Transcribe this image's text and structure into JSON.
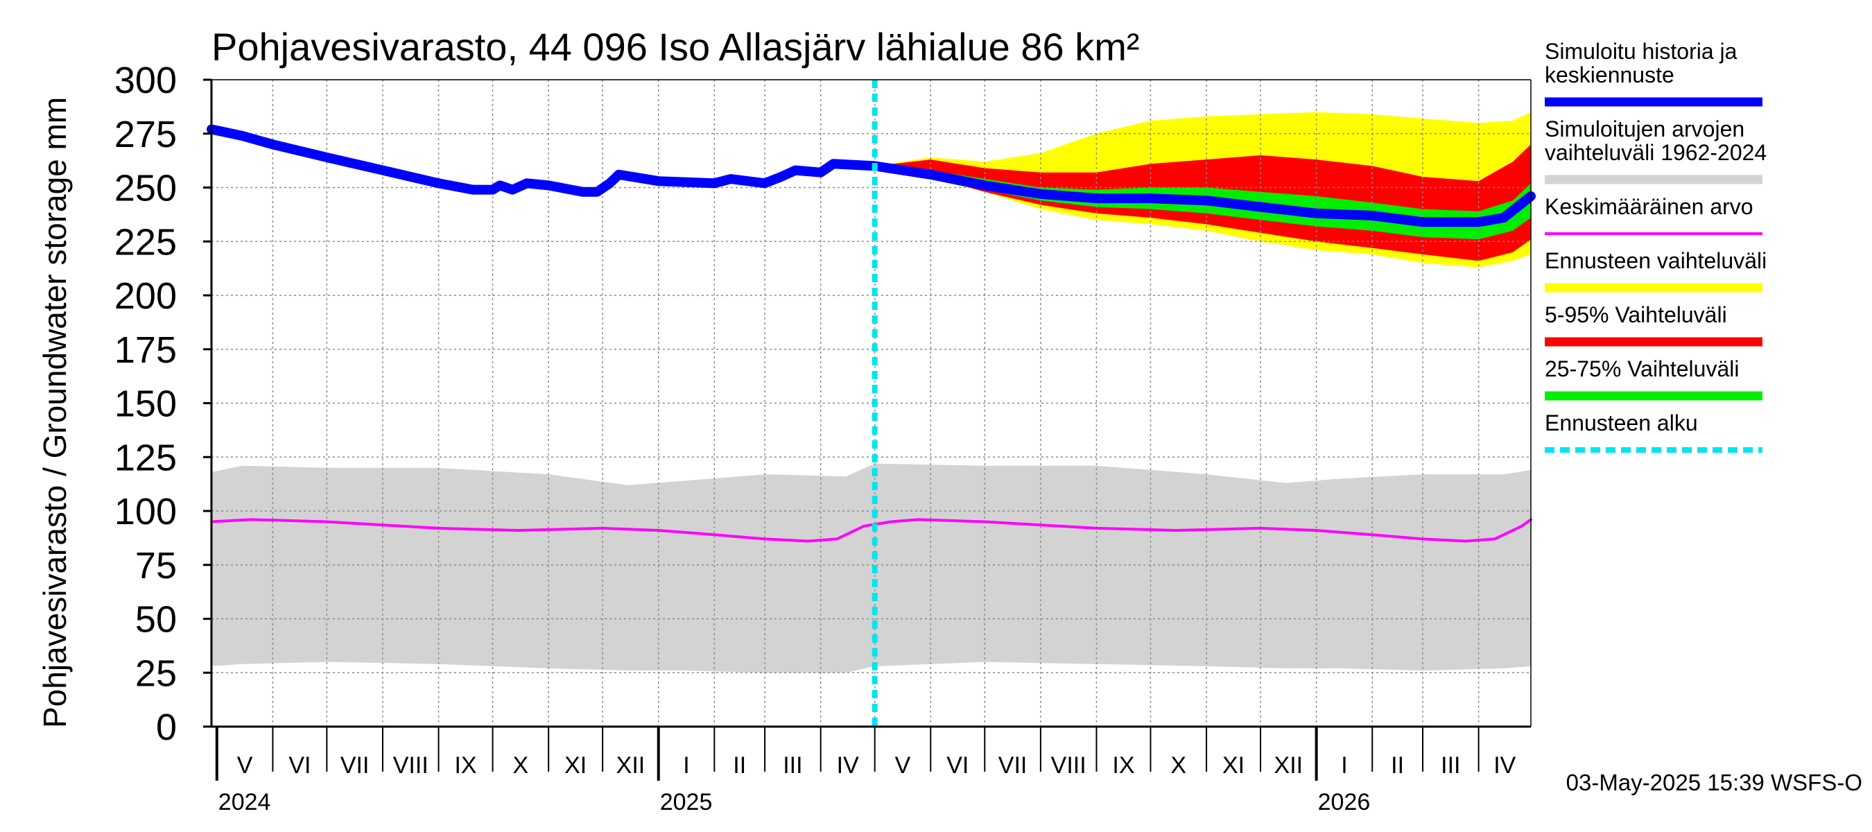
{
  "chart_data": {
    "type": "area",
    "title": "Pohjavesivarasto, 44 096 Iso Allasjärv lähialue 86 km²",
    "ylabel": "Pohjavesivarasto / Groundwater storage   mm",
    "ylim": [
      0,
      300
    ],
    "yticks": [
      "0",
      "25",
      "50",
      "75",
      "100",
      "125",
      "150",
      "175",
      "200",
      "225",
      "250",
      "275",
      "300"
    ],
    "xlim": [
      "2024-04-28",
      "2026-04-30"
    ],
    "months": [
      {
        "label": "V",
        "start": "2024-05-01",
        "end": "2024-06-01"
      },
      {
        "label": "VI",
        "start": "2024-06-01",
        "end": "2024-07-01"
      },
      {
        "label": "VII",
        "start": "2024-07-01",
        "end": "2024-08-01"
      },
      {
        "label": "VIII",
        "start": "2024-08-01",
        "end": "2024-09-01"
      },
      {
        "label": "IX",
        "start": "2024-09-01",
        "end": "2024-10-01"
      },
      {
        "label": "X",
        "start": "2024-10-01",
        "end": "2024-11-01"
      },
      {
        "label": "XI",
        "start": "2024-11-01",
        "end": "2024-12-01"
      },
      {
        "label": "XII",
        "start": "2024-12-01",
        "end": "2025-01-01"
      },
      {
        "label": "I",
        "start": "2025-01-01",
        "end": "2025-02-01"
      },
      {
        "label": "II",
        "start": "2025-02-01",
        "end": "2025-03-01"
      },
      {
        "label": "III",
        "start": "2025-03-01",
        "end": "2025-04-01"
      },
      {
        "label": "IV",
        "start": "2025-04-01",
        "end": "2025-05-01"
      },
      {
        "label": "V",
        "start": "2025-05-01",
        "end": "2025-06-01"
      },
      {
        "label": "VI",
        "start": "2025-06-01",
        "end": "2025-07-01"
      },
      {
        "label": "VII",
        "start": "2025-07-01",
        "end": "2025-08-01"
      },
      {
        "label": "VIII",
        "start": "2025-08-01",
        "end": "2025-09-01"
      },
      {
        "label": "IX",
        "start": "2025-09-01",
        "end": "2025-10-01"
      },
      {
        "label": "X",
        "start": "2025-10-01",
        "end": "2025-11-01"
      },
      {
        "label": "XI",
        "start": "2025-11-01",
        "end": "2025-12-01"
      },
      {
        "label": "XII",
        "start": "2025-12-01",
        "end": "2026-01-01"
      },
      {
        "label": "I",
        "start": "2026-01-01",
        "end": "2026-02-01"
      },
      {
        "label": "II",
        "start": "2026-02-01",
        "end": "2026-03-01"
      },
      {
        "label": "III",
        "start": "2026-03-01",
        "end": "2026-04-01"
      },
      {
        "label": "IV",
        "start": "2026-04-01",
        "end": "2026-04-30"
      }
    ],
    "years": [
      {
        "label": "2024",
        "date": "2024-05-01"
      },
      {
        "label": "2025",
        "date": "2025-01-01"
      },
      {
        "label": "2026",
        "date": "2026-01-01"
      }
    ],
    "forecast_start": "2025-05-01",
    "series": [
      {
        "name": "Simuloitujen arvojen vaihteluväli 1962-2024",
        "kind": "band",
        "color": "#d3d3d3",
        "points": [
          {
            "date": "2024-04-28",
            "low": 28,
            "high": 118
          },
          {
            "date": "2024-05-15",
            "low": 29,
            "high": 121
          },
          {
            "date": "2024-07-01",
            "low": 30,
            "high": 120
          },
          {
            "date": "2024-09-01",
            "low": 29,
            "high": 120
          },
          {
            "date": "2024-11-01",
            "low": 27,
            "high": 117
          },
          {
            "date": "2024-12-15",
            "low": 26,
            "high": 112
          },
          {
            "date": "2025-01-15",
            "low": 26,
            "high": 114
          },
          {
            "date": "2025-03-01",
            "low": 25,
            "high": 117
          },
          {
            "date": "2025-04-15",
            "low": 25,
            "high": 116
          },
          {
            "date": "2025-05-01",
            "low": 28,
            "high": 122
          },
          {
            "date": "2025-07-01",
            "low": 30,
            "high": 121
          },
          {
            "date": "2025-09-01",
            "low": 29,
            "high": 121
          },
          {
            "date": "2025-11-01",
            "low": 28,
            "high": 117
          },
          {
            "date": "2025-12-15",
            "low": 27,
            "high": 113
          },
          {
            "date": "2026-01-15",
            "low": 27,
            "high": 115
          },
          {
            "date": "2026-03-01",
            "low": 26,
            "high": 117
          },
          {
            "date": "2026-04-15",
            "low": 27,
            "high": 117
          },
          {
            "date": "2026-04-30",
            "low": 28,
            "high": 119
          }
        ]
      },
      {
        "name": "Ennusteen vaihteluväli",
        "kind": "band",
        "color": "#ffff00",
        "points": [
          {
            "date": "2025-05-01",
            "low": 259,
            "high": 260
          },
          {
            "date": "2025-06-01",
            "low": 254,
            "high": 264
          },
          {
            "date": "2025-07-01",
            "low": 248,
            "high": 262
          },
          {
            "date": "2025-08-01",
            "low": 240,
            "high": 266
          },
          {
            "date": "2025-09-01",
            "low": 235,
            "high": 275
          },
          {
            "date": "2025-10-01",
            "low": 233,
            "high": 281
          },
          {
            "date": "2025-11-01",
            "low": 230,
            "high": 283
          },
          {
            "date": "2025-12-01",
            "low": 225,
            "high": 284
          },
          {
            "date": "2026-01-01",
            "low": 221,
            "high": 285
          },
          {
            "date": "2026-02-01",
            "low": 219,
            "high": 284
          },
          {
            "date": "2026-03-01",
            "low": 215,
            "high": 282
          },
          {
            "date": "2026-04-01",
            "low": 213,
            "high": 280
          },
          {
            "date": "2026-04-20",
            "low": 216,
            "high": 281
          },
          {
            "date": "2026-04-30",
            "low": 219,
            "high": 285
          }
        ]
      },
      {
        "name": "5-95% Vaihteluväli",
        "kind": "band",
        "color": "#ff0000",
        "points": [
          {
            "date": "2025-05-01",
            "low": 259,
            "high": 260
          },
          {
            "date": "2025-06-01",
            "low": 255,
            "high": 263
          },
          {
            "date": "2025-07-01",
            "low": 248,
            "high": 259
          },
          {
            "date": "2025-08-01",
            "low": 242,
            "high": 257
          },
          {
            "date": "2025-09-01",
            "low": 238,
            "high": 257
          },
          {
            "date": "2025-10-01",
            "low": 236,
            "high": 261
          },
          {
            "date": "2025-11-01",
            "low": 233,
            "high": 263
          },
          {
            "date": "2025-12-01",
            "low": 229,
            "high": 265
          },
          {
            "date": "2026-01-01",
            "low": 225,
            "high": 263
          },
          {
            "date": "2026-02-01",
            "low": 222,
            "high": 260
          },
          {
            "date": "2026-03-01",
            "low": 219,
            "high": 255
          },
          {
            "date": "2026-04-01",
            "low": 216,
            "high": 253
          },
          {
            "date": "2026-04-20",
            "low": 220,
            "high": 262
          },
          {
            "date": "2026-04-30",
            "low": 226,
            "high": 270
          }
        ]
      },
      {
        "name": "25-75% Vaihteluväli",
        "kind": "band",
        "color": "#00ee00",
        "points": [
          {
            "date": "2025-05-01",
            "low": 259,
            "high": 260
          },
          {
            "date": "2025-06-01",
            "low": 255,
            "high": 258
          },
          {
            "date": "2025-07-01",
            "low": 249,
            "high": 254
          },
          {
            "date": "2025-08-01",
            "low": 244,
            "high": 250
          },
          {
            "date": "2025-09-01",
            "low": 241,
            "high": 249
          },
          {
            "date": "2025-10-01",
            "low": 240,
            "high": 250
          },
          {
            "date": "2025-11-01",
            "low": 238,
            "high": 250
          },
          {
            "date": "2025-12-01",
            "low": 235,
            "high": 248
          },
          {
            "date": "2026-01-01",
            "low": 232,
            "high": 246
          },
          {
            "date": "2026-02-01",
            "low": 230,
            "high": 243
          },
          {
            "date": "2026-03-01",
            "low": 227,
            "high": 240
          },
          {
            "date": "2026-04-01",
            "low": 226,
            "high": 239
          },
          {
            "date": "2026-04-20",
            "low": 230,
            "high": 244
          },
          {
            "date": "2026-04-30",
            "low": 236,
            "high": 252
          }
        ]
      },
      {
        "name": "Keskimääräinen arvo",
        "kind": "line",
        "color": "#ff00ff",
        "points": [
          {
            "date": "2024-04-28",
            "value": 95
          },
          {
            "date": "2024-05-20",
            "value": 96
          },
          {
            "date": "2024-07-01",
            "value": 95
          },
          {
            "date": "2024-09-01",
            "value": 92
          },
          {
            "date": "2024-10-15",
            "value": 91
          },
          {
            "date": "2024-12-01",
            "value": 92
          },
          {
            "date": "2025-01-01",
            "value": 91
          },
          {
            "date": "2025-02-01",
            "value": 89
          },
          {
            "date": "2025-03-01",
            "value": 87
          },
          {
            "date": "2025-03-25",
            "value": 86
          },
          {
            "date": "2025-04-10",
            "value": 87
          },
          {
            "date": "2025-04-25",
            "value": 93
          },
          {
            "date": "2025-05-10",
            "value": 95
          },
          {
            "date": "2025-05-25",
            "value": 96
          },
          {
            "date": "2025-07-01",
            "value": 95
          },
          {
            "date": "2025-09-01",
            "value": 92
          },
          {
            "date": "2025-10-15",
            "value": 91
          },
          {
            "date": "2025-12-01",
            "value": 92
          },
          {
            "date": "2026-01-01",
            "value": 91
          },
          {
            "date": "2026-02-01",
            "value": 89
          },
          {
            "date": "2026-03-01",
            "value": 87
          },
          {
            "date": "2026-03-25",
            "value": 86
          },
          {
            "date": "2026-04-10",
            "value": 87
          },
          {
            "date": "2026-04-25",
            "value": 93
          },
          {
            "date": "2026-04-30",
            "value": 96
          }
        ]
      },
      {
        "name": "Simuloitu historia ja keskiennuste",
        "kind": "line",
        "color": "#0000ff",
        "points": [
          {
            "date": "2024-04-28",
            "value": 277
          },
          {
            "date": "2024-05-15",
            "value": 274
          },
          {
            "date": "2024-06-01",
            "value": 270
          },
          {
            "date": "2024-07-01",
            "value": 264
          },
          {
            "date": "2024-08-01",
            "value": 258
          },
          {
            "date": "2024-09-01",
            "value": 252
          },
          {
            "date": "2024-09-20",
            "value": 249
          },
          {
            "date": "2024-10-01",
            "value": 249
          },
          {
            "date": "2024-10-05",
            "value": 251
          },
          {
            "date": "2024-10-12",
            "value": 249
          },
          {
            "date": "2024-10-20",
            "value": 252
          },
          {
            "date": "2024-11-01",
            "value": 251
          },
          {
            "date": "2024-11-20",
            "value": 248
          },
          {
            "date": "2024-11-28",
            "value": 248
          },
          {
            "date": "2024-12-05",
            "value": 252
          },
          {
            "date": "2024-12-10",
            "value": 256
          },
          {
            "date": "2025-01-01",
            "value": 253
          },
          {
            "date": "2025-02-01",
            "value": 252
          },
          {
            "date": "2025-02-10",
            "value": 254
          },
          {
            "date": "2025-03-01",
            "value": 252
          },
          {
            "date": "2025-03-10",
            "value": 255
          },
          {
            "date": "2025-03-18",
            "value": 258
          },
          {
            "date": "2025-04-01",
            "value": 257
          },
          {
            "date": "2025-04-08",
            "value": 261
          },
          {
            "date": "2025-05-01",
            "value": 260
          },
          {
            "date": "2025-06-01",
            "value": 256
          },
          {
            "date": "2025-07-01",
            "value": 251
          },
          {
            "date": "2025-08-01",
            "value": 247
          },
          {
            "date": "2025-09-01",
            "value": 245
          },
          {
            "date": "2025-10-01",
            "value": 245
          },
          {
            "date": "2025-11-01",
            "value": 244
          },
          {
            "date": "2025-12-01",
            "value": 241
          },
          {
            "date": "2026-01-01",
            "value": 238
          },
          {
            "date": "2026-02-01",
            "value": 237
          },
          {
            "date": "2026-03-01",
            "value": 234
          },
          {
            "date": "2026-04-01",
            "value": 234
          },
          {
            "date": "2026-04-15",
            "value": 236
          },
          {
            "date": "2026-04-30",
            "value": 246
          }
        ]
      }
    ],
    "legend": [
      {
        "lines": [
          "Simuloitu historia ja",
          "keskiennuste"
        ],
        "color": "#0000ff",
        "style": "solid"
      },
      {
        "lines": [
          "Simuloitujen arvojen",
          "vaihteluväli 1962-2024"
        ],
        "color": "#d3d3d3",
        "style": "solid"
      },
      {
        "lines": [
          "Keskimääräinen arvo"
        ],
        "color": "#ff00ff",
        "style": "thin"
      },
      {
        "lines": [
          "Ennusteen vaihteluväli"
        ],
        "color": "#ffff00",
        "style": "solid"
      },
      {
        "lines": [
          "5-95% Vaihteluväli"
        ],
        "color": "#ff0000",
        "style": "solid"
      },
      {
        "lines": [
          "25-75% Vaihteluväli"
        ],
        "color": "#00ee00",
        "style": "solid"
      },
      {
        "lines": [
          "Ennusteen alku"
        ],
        "color": "#00e5ee",
        "style": "dashed"
      }
    ],
    "legend_position": "right",
    "grid": true,
    "footer": "03-May-2025 15:39 WSFS-O"
  }
}
